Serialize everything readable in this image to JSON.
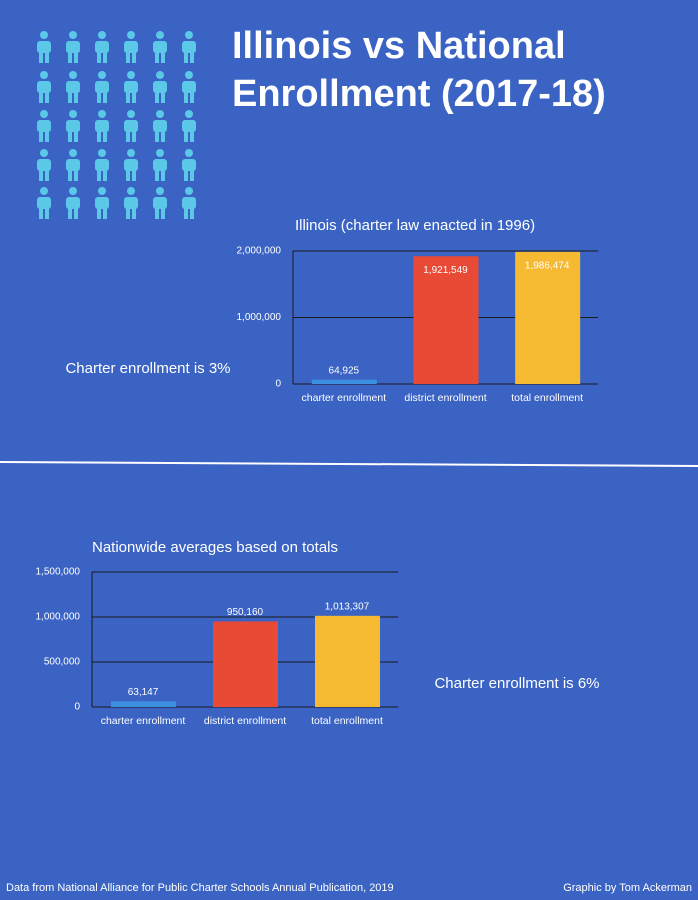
{
  "header": {
    "title": "Illinois vs National Enrollment (2017-18)"
  },
  "chart_data": [
    {
      "type": "bar",
      "title": "Illinois (charter law enacted in 1996)",
      "categories": [
        "charter enrollment",
        "district enrollment",
        "total enrollment"
      ],
      "values": [
        64925,
        1921549,
        1986474
      ],
      "value_labels": [
        "64,925",
        "1,921,549",
        "1,986,474"
      ],
      "colors": [
        "#3d8fe0",
        "#e84a35",
        "#f5b932"
      ],
      "ylim": [
        0,
        2000000
      ],
      "yticks": [
        0,
        {
          "value": 1000000,
          "label": "1,000,000"
        },
        {
          "value": 2000000,
          "label": "2,000,000"
        }
      ],
      "grid": true,
      "value_label_position": "inside",
      "annotation": "Charter enrollment is 3%"
    },
    {
      "type": "bar",
      "title": "Nationwide averages based on totals",
      "categories": [
        "charter enrollment",
        "district enrollment",
        "total enrollment"
      ],
      "values": [
        63147,
        950160,
        1013307
      ],
      "value_labels": [
        "63,147",
        "950,160",
        "1,013,307"
      ],
      "colors": [
        "#3d8fe0",
        "#e84a35",
        "#f5b932"
      ],
      "ylim": [
        0,
        1500000
      ],
      "yticks": [
        0,
        {
          "value": 500000,
          "label": "500,000"
        },
        {
          "value": 1000000,
          "label": "1,000,000"
        },
        {
          "value": 1500000,
          "label": "1,500,000"
        }
      ],
      "grid": true,
      "value_label_position": "outside",
      "annotation": "Charter enrollment is 6%"
    }
  ],
  "footer": {
    "source": "Data from National Alliance for Public Charter Schools Annual Publication, 2019",
    "credit": "Graphic by Tom Ackerman"
  }
}
